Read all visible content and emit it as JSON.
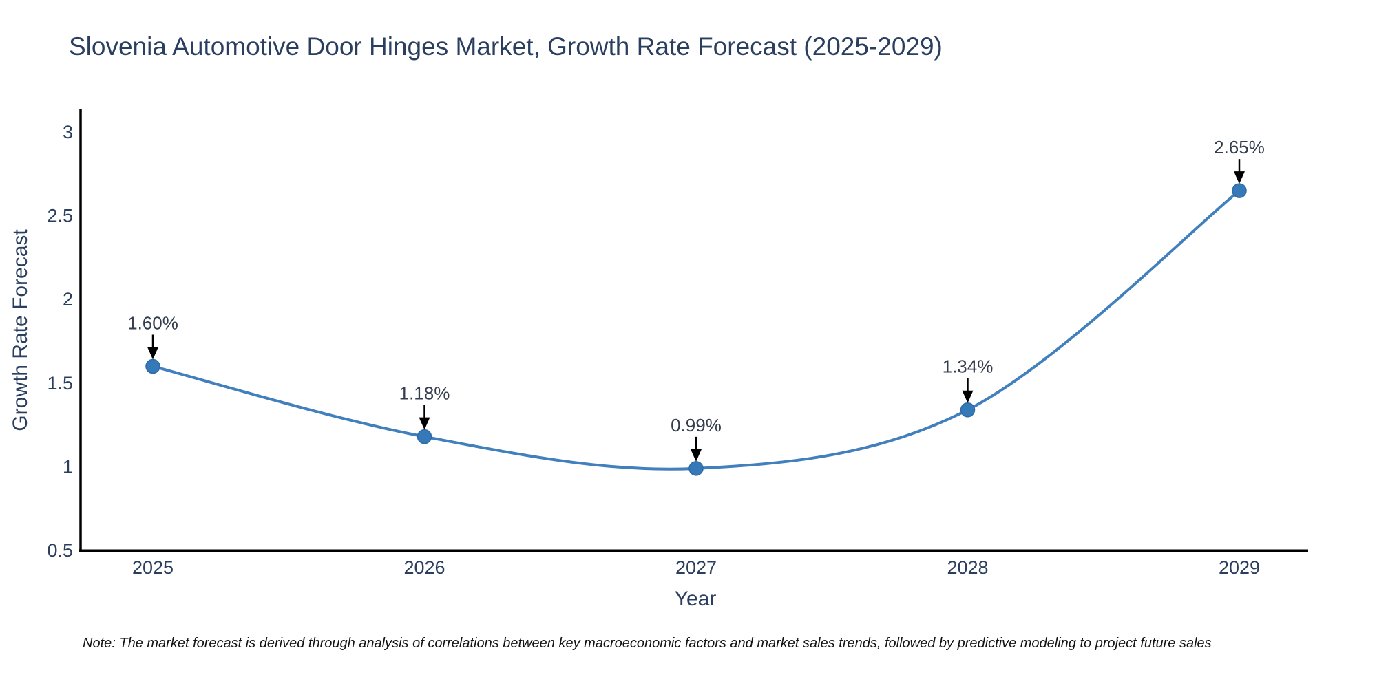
{
  "title": "Slovenia Automotive Door Hinges Market, Growth Rate Forecast (2025-2029)",
  "note": "Note: The market forecast is derived through analysis of correlations between key macroeconomic factors and market sales trends, followed by predictive modeling to project future sales",
  "chart_data": {
    "type": "line",
    "title": "Slovenia Automotive Door Hinges Market, Growth Rate Forecast (2025-2029)",
    "xlabel": "Year",
    "ylabel": "Growth Rate Forecast",
    "x": [
      2025,
      2026,
      2027,
      2028,
      2029
    ],
    "categories": [
      "2025",
      "2026",
      "2027",
      "2028",
      "2029"
    ],
    "series": [
      {
        "name": "Growth Rate Forecast",
        "values": [
          1.6,
          1.18,
          0.99,
          1.34,
          2.65
        ]
      }
    ],
    "point_labels": [
      "1.60%",
      "1.18%",
      "0.99%",
      "1.34%",
      "2.65%"
    ],
    "ylim": [
      0.5,
      3
    ],
    "yticks": [
      0.5,
      1,
      1.5,
      2,
      2.5,
      3
    ],
    "grid": false,
    "legend_position": "none",
    "colors": {
      "line": "#4180bd",
      "marker": "#3579b8",
      "marker_edge": "#2e6ba6",
      "axis": "#000000",
      "tick_label": "#2a3f5f",
      "annotation_text": "#333d4d",
      "annotation_arrow": "#000000",
      "title_text": "#2a3f5f"
    }
  }
}
